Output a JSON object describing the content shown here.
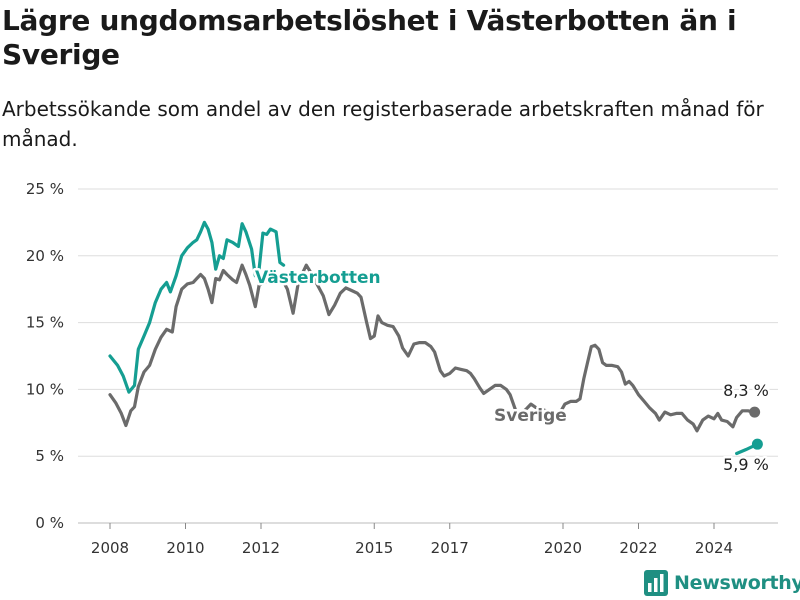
{
  "title": "Lägre ungdomsarbetslöshet i Västerbotten än i Sverige",
  "subtitle": "Arbetssökande som andel av den registerbaserade arbetskraften månad för månad.",
  "brand": "Newsworthy",
  "colors": {
    "vasterbotten": "#159e92",
    "sverige": "#6b6b6b",
    "grid": "#dddddd",
    "text": "#333333"
  },
  "chart_data": {
    "type": "line",
    "title": "Lägre ungdomsarbetslöshet i Västerbotten än i Sverige",
    "ylabel": "",
    "xlabel": "",
    "y_ticks": [
      0,
      5,
      10,
      15,
      20,
      25
    ],
    "y_tick_labels": [
      "0 %",
      "5 %",
      "10 %",
      "15 %",
      "20 %",
      "25 %"
    ],
    "x_ticks": [
      2008,
      2010,
      2012,
      2015,
      2017,
      2020,
      2022,
      2024
    ],
    "x_tick_labels": [
      "2008",
      "2010",
      "2012",
      "2015",
      "2017",
      "2020",
      "2022",
      "2024"
    ],
    "ylim": [
      0,
      25
    ],
    "xlim": [
      2007.1,
      2025.7
    ],
    "grid": true,
    "legend": "inline labels",
    "series": [
      {
        "name": "Västerbotten",
        "label": "Västerbotten",
        "end_label": "5,9 %",
        "color": "#159e92",
        "points": [
          [
            2008.0,
            12.5
          ],
          [
            2008.2,
            11.8
          ],
          [
            2008.35,
            11.0
          ],
          [
            2008.5,
            9.8
          ],
          [
            2008.65,
            10.3
          ],
          [
            2008.75,
            13.0
          ],
          [
            2008.9,
            14.0
          ],
          [
            2009.05,
            15.0
          ],
          [
            2009.2,
            16.5
          ],
          [
            2009.35,
            17.5
          ],
          [
            2009.5,
            18.0
          ],
          [
            2009.6,
            17.3
          ],
          [
            2009.75,
            18.5
          ],
          [
            2009.9,
            20.0
          ],
          [
            2010.05,
            20.6
          ],
          [
            2010.2,
            21.0
          ],
          [
            2010.3,
            21.2
          ],
          [
            2010.4,
            21.8
          ],
          [
            2010.5,
            22.5
          ],
          [
            2010.6,
            22.0
          ],
          [
            2010.7,
            21.0
          ],
          [
            2010.8,
            19.0
          ],
          [
            2010.9,
            20.0
          ],
          [
            2011.0,
            19.8
          ],
          [
            2011.1,
            21.2
          ],
          [
            2011.25,
            21.0
          ],
          [
            2011.4,
            20.7
          ],
          [
            2011.5,
            22.4
          ],
          [
            2011.6,
            21.8
          ],
          [
            2011.75,
            20.5
          ],
          [
            2011.85,
            18.5
          ],
          [
            2011.95,
            19.0
          ],
          [
            2012.05,
            21.7
          ],
          [
            2012.15,
            21.6
          ],
          [
            2012.25,
            22.0
          ],
          [
            2012.4,
            21.8
          ],
          [
            2012.5,
            19.5
          ],
          [
            2012.6,
            19.3
          ]
        ]
      },
      {
        "name": "Sverige",
        "label": "Sverige",
        "end_label": "8,3 %",
        "color": "#6b6b6b",
        "points": [
          [
            2008.0,
            9.6
          ],
          [
            2008.15,
            9.0
          ],
          [
            2008.3,
            8.2
          ],
          [
            2008.42,
            7.3
          ],
          [
            2008.55,
            8.4
          ],
          [
            2008.65,
            8.7
          ],
          [
            2008.75,
            10.2
          ],
          [
            2008.9,
            11.3
          ],
          [
            2009.05,
            11.8
          ],
          [
            2009.2,
            13.0
          ],
          [
            2009.35,
            13.9
          ],
          [
            2009.5,
            14.5
          ],
          [
            2009.65,
            14.3
          ],
          [
            2009.75,
            16.2
          ],
          [
            2009.9,
            17.5
          ],
          [
            2010.05,
            17.9
          ],
          [
            2010.2,
            18.0
          ],
          [
            2010.3,
            18.3
          ],
          [
            2010.4,
            18.6
          ],
          [
            2010.5,
            18.3
          ],
          [
            2010.6,
            17.5
          ],
          [
            2010.7,
            16.5
          ],
          [
            2010.8,
            18.3
          ],
          [
            2010.9,
            18.2
          ],
          [
            2011.0,
            18.9
          ],
          [
            2011.1,
            18.6
          ],
          [
            2011.25,
            18.2
          ],
          [
            2011.35,
            18.0
          ],
          [
            2011.5,
            19.3
          ],
          [
            2011.6,
            18.6
          ],
          [
            2011.7,
            17.8
          ],
          [
            2011.85,
            16.2
          ],
          [
            2011.95,
            17.8
          ],
          [
            2012.1,
            18.0
          ],
          [
            2012.2,
            18.7
          ],
          [
            2012.3,
            18.8
          ],
          [
            2012.45,
            18.5
          ],
          [
            2012.55,
            18.3
          ],
          [
            2012.7,
            17.5
          ],
          [
            2012.85,
            15.7
          ],
          [
            2013.0,
            18.2
          ],
          [
            2013.1,
            18.7
          ],
          [
            2013.2,
            19.3
          ],
          [
            2013.35,
            18.6
          ],
          [
            2013.5,
            17.8
          ],
          [
            2013.65,
            17.0
          ],
          [
            2013.8,
            15.6
          ],
          [
            2013.95,
            16.3
          ],
          [
            2014.1,
            17.2
          ],
          [
            2014.25,
            17.6
          ],
          [
            2014.4,
            17.4
          ],
          [
            2014.55,
            17.2
          ],
          [
            2014.65,
            16.9
          ],
          [
            2014.8,
            15.0
          ],
          [
            2014.9,
            13.8
          ],
          [
            2015.0,
            14.0
          ],
          [
            2015.1,
            15.5
          ],
          [
            2015.2,
            15.0
          ],
          [
            2015.35,
            14.8
          ],
          [
            2015.5,
            14.7
          ],
          [
            2015.65,
            14.0
          ],
          [
            2015.75,
            13.1
          ],
          [
            2015.9,
            12.5
          ],
          [
            2016.05,
            13.4
          ],
          [
            2016.2,
            13.5
          ],
          [
            2016.35,
            13.5
          ],
          [
            2016.5,
            13.2
          ],
          [
            2016.6,
            12.8
          ],
          [
            2016.75,
            11.4
          ],
          [
            2016.85,
            11.0
          ],
          [
            2017.0,
            11.2
          ],
          [
            2017.15,
            11.6
          ],
          [
            2017.3,
            11.5
          ],
          [
            2017.45,
            11.4
          ],
          [
            2017.55,
            11.2
          ],
          [
            2017.65,
            10.8
          ],
          [
            2017.8,
            10.1
          ],
          [
            2017.9,
            9.7
          ],
          [
            2018.05,
            10.0
          ],
          [
            2018.2,
            10.3
          ],
          [
            2018.35,
            10.3
          ],
          [
            2018.5,
            10.0
          ],
          [
            2018.6,
            9.6
          ],
          [
            2018.75,
            8.4
          ],
          [
            2018.9,
            8.2
          ],
          [
            2019.05,
            8.6
          ],
          [
            2019.15,
            8.9
          ],
          [
            2019.3,
            8.6
          ],
          [
            2019.45,
            8.5
          ],
          [
            2019.55,
            8.4
          ],
          [
            2019.7,
            7.9
          ],
          [
            2019.8,
            7.7
          ],
          [
            2019.95,
            8.4
          ],
          [
            2020.05,
            8.9
          ],
          [
            2020.2,
            9.1
          ],
          [
            2020.35,
            9.1
          ],
          [
            2020.45,
            9.3
          ],
          [
            2020.55,
            10.8
          ],
          [
            2020.65,
            12.0
          ],
          [
            2020.75,
            13.2
          ],
          [
            2020.85,
            13.3
          ],
          [
            2020.95,
            13.0
          ],
          [
            2021.05,
            12.0
          ],
          [
            2021.15,
            11.8
          ],
          [
            2021.3,
            11.8
          ],
          [
            2021.45,
            11.7
          ],
          [
            2021.55,
            11.3
          ],
          [
            2021.65,
            10.4
          ],
          [
            2021.75,
            10.6
          ],
          [
            2021.85,
            10.3
          ],
          [
            2022.0,
            9.6
          ],
          [
            2022.15,
            9.1
          ],
          [
            2022.3,
            8.6
          ],
          [
            2022.45,
            8.2
          ],
          [
            2022.55,
            7.7
          ],
          [
            2022.7,
            8.3
          ],
          [
            2022.85,
            8.1
          ],
          [
            2023.0,
            8.2
          ],
          [
            2023.15,
            8.2
          ],
          [
            2023.3,
            7.7
          ],
          [
            2023.45,
            7.4
          ],
          [
            2023.55,
            6.9
          ],
          [
            2023.7,
            7.7
          ],
          [
            2023.85,
            8.0
          ],
          [
            2024.0,
            7.8
          ],
          [
            2024.1,
            8.2
          ],
          [
            2024.2,
            7.7
          ],
          [
            2024.35,
            7.6
          ],
          [
            2024.5,
            7.2
          ],
          [
            2024.6,
            7.9
          ],
          [
            2024.75,
            8.4
          ],
          [
            2024.9,
            8.4
          ],
          [
            2025.05,
            8.3
          ]
        ]
      }
    ]
  }
}
